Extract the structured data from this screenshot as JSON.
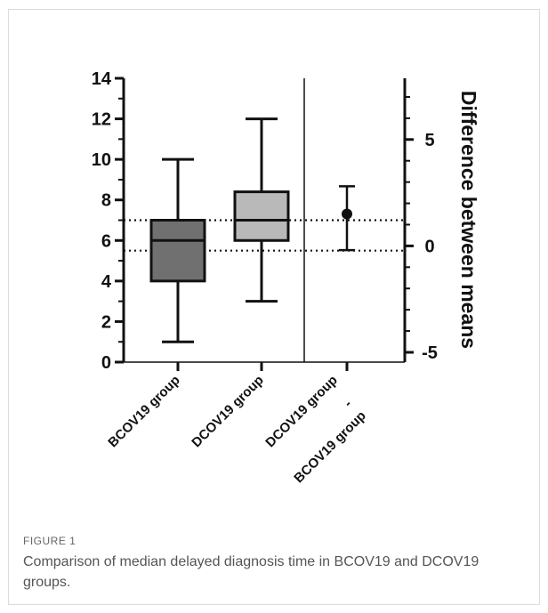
{
  "figure": {
    "label": "FIGURE 1",
    "caption": "Comparison of median delayed diagnosis time in BCOV19 and DCOV19 groups."
  },
  "chart_data": {
    "type": "boxplot",
    "left_axis": {
      "ylim": [
        0,
        14
      ],
      "ticks": [
        0,
        2,
        4,
        6,
        8,
        10,
        12,
        14
      ]
    },
    "right_axis": {
      "label": "Difference between means",
      "ylim": [
        -5,
        7.5
      ],
      "ticks": [
        -5,
        0,
        5
      ]
    },
    "categories": [
      "BCOV19  group",
      "DCOV19 group",
      "DCOV19 group",
      "-",
      "BCOV19  group"
    ],
    "boxes": [
      {
        "name": "BCOV19  group",
        "min": 1,
        "q1": 4,
        "median": 6,
        "q3": 7,
        "max": 10,
        "fill": "#707070"
      },
      {
        "name": "DCOV19 group",
        "min": 3,
        "q1": 6,
        "median": 7,
        "q3": 8.4,
        "max": 12,
        "fill": "#b9b9b9"
      }
    ],
    "difference": {
      "mean": 1.5,
      "lower": -0.2,
      "upper": 2.8
    },
    "reference_lines": {
      "group1_mean": 5.5,
      "group2_mean": 7.0,
      "style": "dotted"
    },
    "colors": {
      "axis": "#111111",
      "box_stroke": "#111111"
    }
  }
}
